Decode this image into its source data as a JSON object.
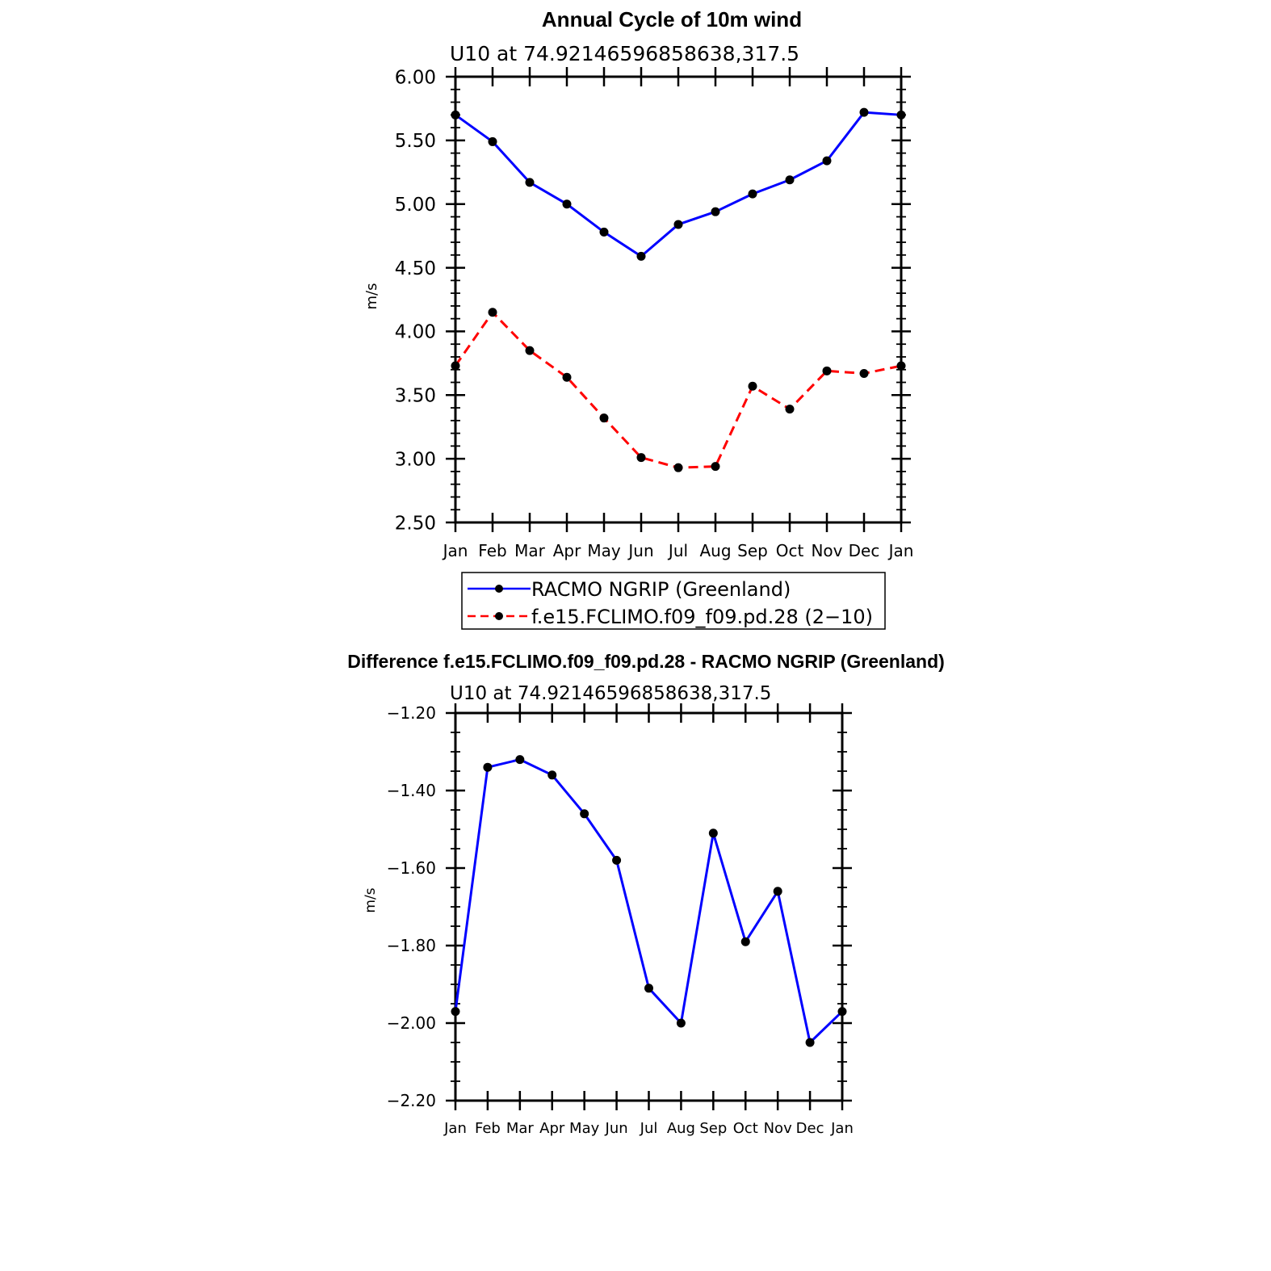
{
  "chart_data": [
    {
      "type": "line",
      "title": "Annual Cycle of 10m wind",
      "subtitle": "U10  at  74.92146596858638,317.5",
      "xlabel": "",
      "ylabel": "m/s",
      "categories": [
        "Jan",
        "Feb",
        "Mar",
        "Apr",
        "May",
        "Jun",
        "Jul",
        "Aug",
        "Sep",
        "Oct",
        "Nov",
        "Dec",
        "Jan"
      ],
      "ylim": [
        2.5,
        6.0
      ],
      "yticks": [
        "6.00",
        "5.50",
        "5.00",
        "4.50",
        "4.00",
        "3.50",
        "3.00",
        "2.50"
      ],
      "ytick_values": [
        6.0,
        5.5,
        5.0,
        4.5,
        4.0,
        3.5,
        3.0,
        2.5
      ],
      "series": [
        {
          "name": "RACMO NGRIP (Greenland)",
          "color": "#0000ff",
          "dash": "solid",
          "marker": "dot",
          "values": [
            5.7,
            5.49,
            5.17,
            5.0,
            4.78,
            4.59,
            4.84,
            4.94,
            5.08,
            5.19,
            5.34,
            5.72,
            5.7
          ]
        },
        {
          "name": "f.e15.FCLIMO.f09_f09.pd.28 (2−10)",
          "color": "#ff0000",
          "dash": "dashed",
          "marker": "dot",
          "values": [
            3.73,
            4.15,
            3.85,
            3.64,
            3.32,
            3.01,
            2.93,
            2.94,
            3.57,
            3.39,
            3.69,
            3.67,
            3.73
          ]
        }
      ],
      "legend": "below"
    },
    {
      "type": "line",
      "title": "Difference f.e15.FCLIMO.f09_f09.pd.28 - RACMO NGRIP (Greenland)",
      "subtitle": "U10  at  74.92146596858638,317.5",
      "xlabel": "",
      "ylabel": "m/s",
      "categories": [
        "Jan",
        "Feb",
        "Mar",
        "Apr",
        "May",
        "Jun",
        "Jul",
        "Aug",
        "Sep",
        "Oct",
        "Nov",
        "Dec",
        "Jan"
      ],
      "ylim": [
        -2.2,
        -1.2
      ],
      "yticks": [
        "−1.20",
        "−1.40",
        "−1.60",
        "−1.80",
        "−2.00",
        "−2.20"
      ],
      "ytick_values": [
        -1.2,
        -1.4,
        -1.6,
        -1.8,
        -2.0,
        -2.2
      ],
      "series": [
        {
          "name": "Difference",
          "color": "#0000ff",
          "dash": "solid",
          "marker": "dot",
          "values": [
            -1.97,
            -1.34,
            -1.32,
            -1.36,
            -1.46,
            -1.58,
            -1.91,
            -2.0,
            -1.51,
            -1.79,
            -1.66,
            -2.05,
            -1.97
          ]
        }
      ]
    }
  ]
}
